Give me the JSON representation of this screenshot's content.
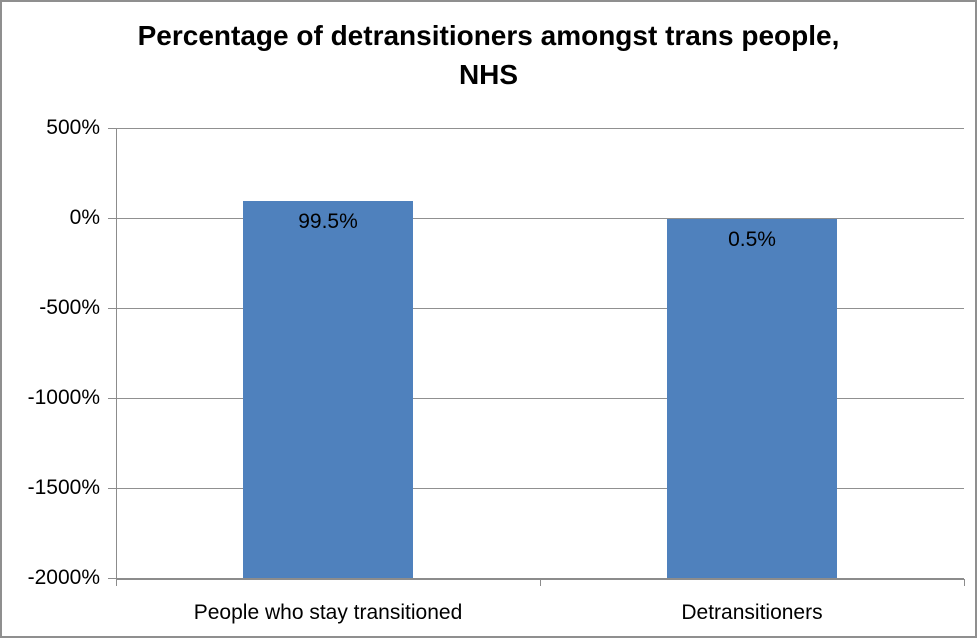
{
  "chart_data": {
    "type": "bar",
    "title": "Percentage of detransitioners amongst trans people, NHS",
    "categories": [
      "People who stay transitioned",
      "Detransitioners"
    ],
    "values": [
      99.5,
      0.5
    ],
    "value_labels": [
      "99.5%",
      "0.5%"
    ],
    "bar_base": -2000,
    "ylim": [
      -2000,
      500
    ],
    "yticks": [
      500,
      0,
      -500,
      -1000,
      -1500,
      -2000
    ],
    "ytick_labels": [
      "500%",
      "0%",
      "-500%",
      "-1000%",
      "-1500%",
      "-2000%"
    ],
    "xlabel": "",
    "ylabel": "",
    "grid": true,
    "legend": false,
    "colors": {
      "bar_fill": "#4F81BD",
      "gridline": "#909090",
      "axis": "#8c8c8c",
      "chart_border": "#8f8f8f",
      "text": "#000000"
    }
  }
}
